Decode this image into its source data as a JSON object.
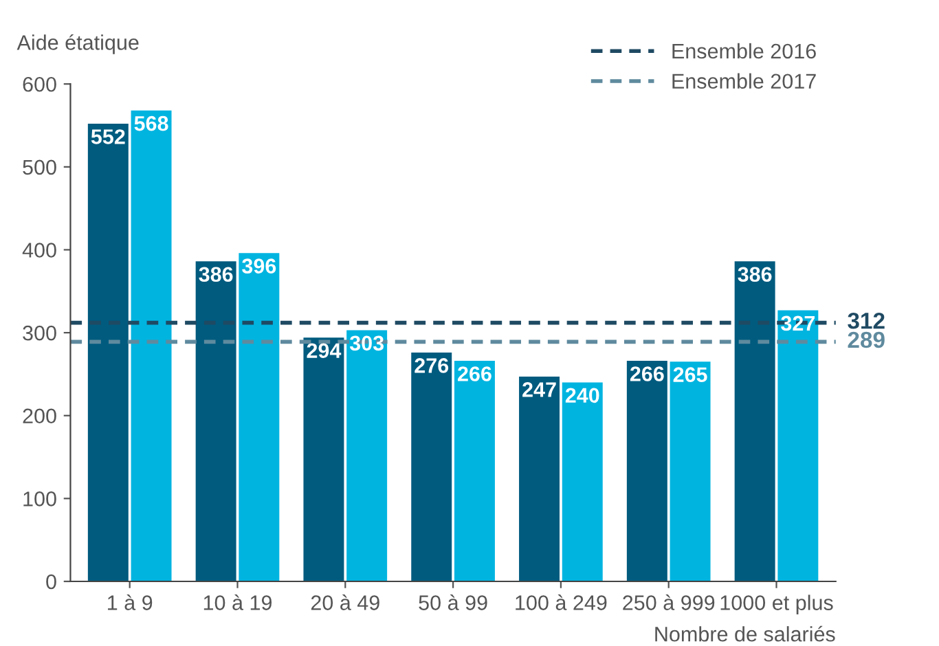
{
  "chart_data": {
    "type": "bar",
    "ylabel": "Aide étatique",
    "xlabel": "Nombre de salariés",
    "categories": [
      "1 à 9",
      "10 à 19",
      "20 à 49",
      "50 à 99",
      "100 à 249",
      "250 à 999",
      "1000 et plus"
    ],
    "series": [
      {
        "color": "#005b7f",
        "values": [
          552,
          386,
          294,
          276,
          247,
          266,
          386
        ]
      },
      {
        "color": "#00b4e0",
        "values": [
          568,
          396,
          303,
          266,
          240,
          265,
          327
        ]
      }
    ],
    "ylim": [
      0,
      600
    ],
    "yticks": [
      0,
      100,
      200,
      300,
      400,
      500,
      600
    ],
    "ref_lines": [
      {
        "axis": "y",
        "value": 312,
        "label": "Ensemble 2016",
        "color": "#1f4a63",
        "line_style": "dashed"
      },
      {
        "axis": "y",
        "value": 289,
        "label": "Ensemble 2017",
        "color": "#5f8a9e",
        "line_style": "dashed"
      }
    ],
    "annotations": [
      "312",
      "289"
    ],
    "data_labels": true,
    "grid": false,
    "legend": "top right"
  }
}
